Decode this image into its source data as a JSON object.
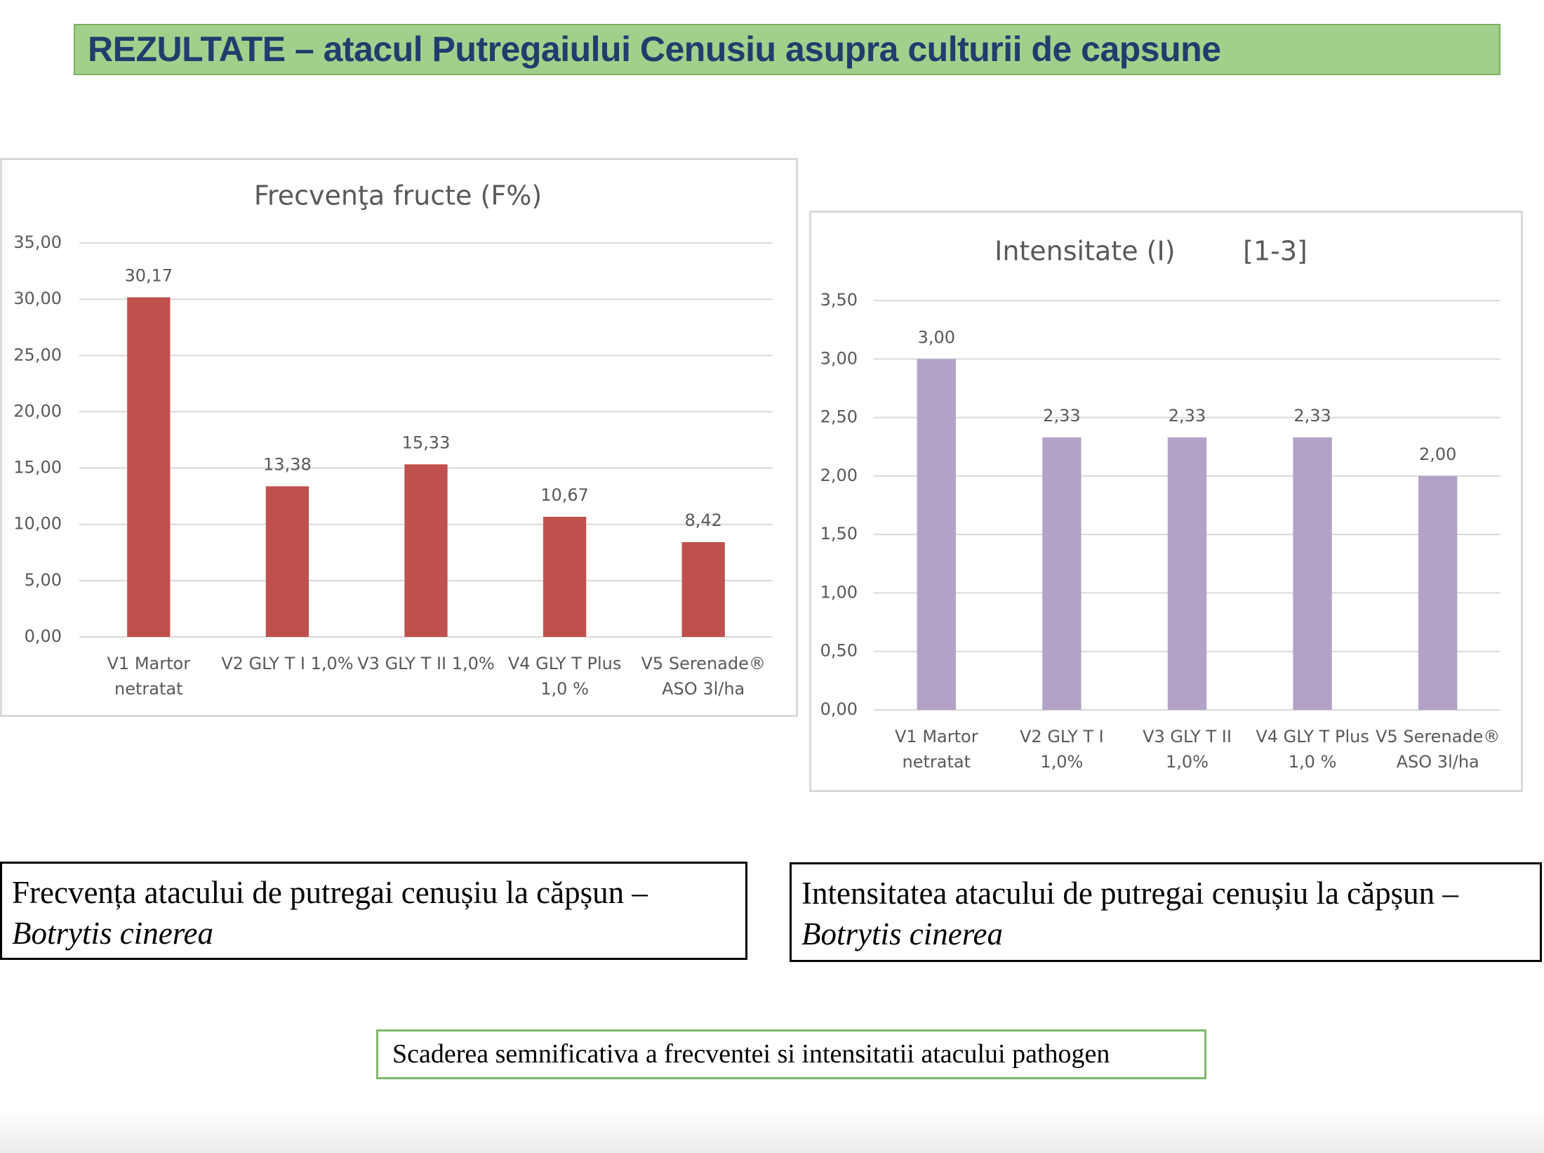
{
  "title": "REZULTATE – atacul Putregaiului Cenusiu asupra culturii de capsune",
  "captions": [
    {
      "text": "Frecvența atacului de putregai cenușiu la căpșun – ",
      "species": "Botrytis cinerea"
    },
    {
      "text": "Intensitatea atacului de putregai cenușiu la căpșun – ",
      "species": "Botrytis cinerea"
    }
  ],
  "conclusion": "Scaderea semnificativa a frecventei si intensitatii atacului pathogen",
  "chart_data": [
    {
      "type": "bar",
      "title": "Frecvenţa fructe (F%)",
      "categories": [
        "V1 Martor netratat",
        "V2 GLY T I 1,0%",
        "V3 GLY T II 1,0%",
        "V4 GLY T Plus 1,0 %",
        "V5 Serenade® ASO 3l/ha"
      ],
      "values": [
        30.17,
        13.38,
        15.33,
        10.67,
        8.42
      ],
      "value_labels": [
        "30,17",
        "13,38",
        "15,33",
        "10,67",
        "8,42"
      ],
      "color": "#c0504d",
      "ylim": [
        0,
        35
      ],
      "yticks": [
        {
          "value": 0,
          "label": "0,00"
        },
        {
          "value": 5,
          "label": "5,00"
        },
        {
          "value": 10,
          "label": "10,00"
        },
        {
          "value": 15,
          "label": "15,00"
        },
        {
          "value": 20,
          "label": "20,00"
        },
        {
          "value": 25,
          "label": "25,00"
        },
        {
          "value": 30,
          "label": "30,00"
        },
        {
          "value": 35,
          "label": "35,00"
        }
      ],
      "grid": true
    },
    {
      "type": "bar",
      "title": "Intensitate (I)        [1-3]",
      "categories": [
        "V1 Martor netratat",
        "V2 GLY T I 1,0%",
        "V3 GLY T II 1,0%",
        "V4 GLY T Plus 1,0 %",
        "V5 Serenade® ASO 3l/ha"
      ],
      "values": [
        3.0,
        2.33,
        2.33,
        2.33,
        2.0
      ],
      "value_labels": [
        "3,00",
        "2,33",
        "2,33",
        "2,33",
        "2,00"
      ],
      "color": "#b3a2c7",
      "ylim": [
        0,
        3.5
      ],
      "yticks": [
        {
          "value": 0,
          "label": "0,00"
        },
        {
          "value": 0.5,
          "label": "0,50"
        },
        {
          "value": 1,
          "label": "1,00"
        },
        {
          "value": 1.5,
          "label": "1,50"
        },
        {
          "value": 2,
          "label": "2,00"
        },
        {
          "value": 2.5,
          "label": "2,50"
        },
        {
          "value": 3,
          "label": "3,00"
        },
        {
          "value": 3.5,
          "label": "3,50"
        }
      ],
      "grid": true
    }
  ]
}
